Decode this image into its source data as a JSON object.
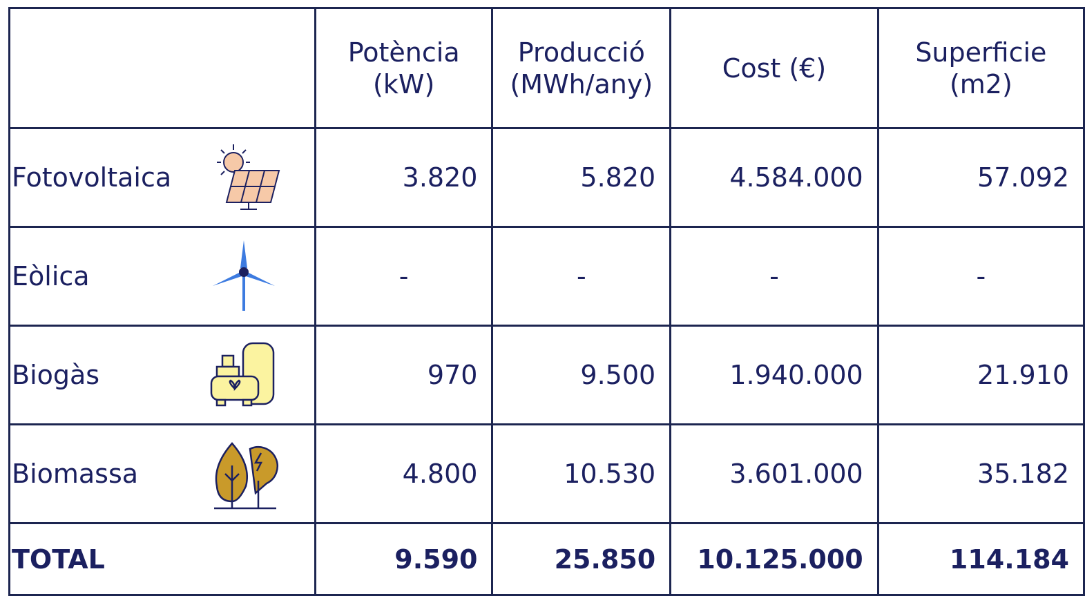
{
  "table": {
    "header": [
      [],
      [
        "Potència",
        "(kW)"
      ],
      [
        "Producció",
        "(MWh/any)"
      ],
      [
        "Cost (€)"
      ],
      [
        "Superficie",
        "(m2)"
      ]
    ],
    "rows": [
      [
        "Fotovoltaica",
        "3.820",
        "5.820",
        "4.584.000",
        "57.092"
      ],
      [
        "Eòlica",
        "-",
        "-",
        "-",
        "-"
      ],
      [
        "Biogàs",
        "970",
        "9.500",
        "1.940.000",
        "21.910"
      ],
      [
        "Biomassa",
        "4.800",
        "10.530",
        "3.601.000",
        "35.182"
      ]
    ],
    "total": [
      "TOTAL",
      "9.590",
      "25.850",
      "10.125.000",
      "114.184"
    ]
  }
}
